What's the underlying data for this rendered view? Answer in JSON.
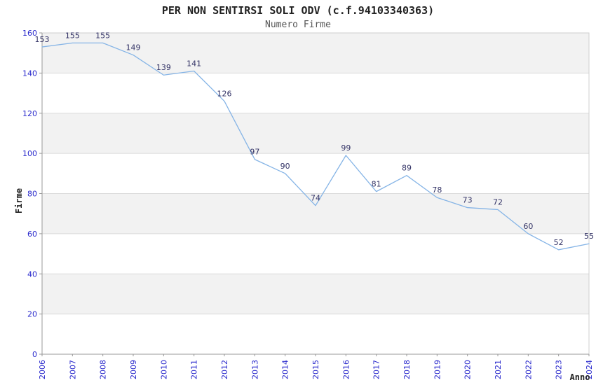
{
  "chart_data": {
    "type": "line",
    "title": "PER NON SENTIRSI SOLI ODV (c.f.94103340363)",
    "subtitle": "Numero Firme",
    "xlabel": "Anno",
    "ylabel": "Firme",
    "x": [
      "2006",
      "2007",
      "2008",
      "2009",
      "2010",
      "2011",
      "2012",
      "2013",
      "2014",
      "2015",
      "2016",
      "2017",
      "2018",
      "2019",
      "2020",
      "2021",
      "2022",
      "2023",
      "2024"
    ],
    "series": [
      {
        "name": "Numero Firme",
        "values": [
          153,
          155,
          155,
          149,
          139,
          141,
          126,
          97,
          90,
          74,
          99,
          81,
          89,
          78,
          73,
          72,
          60,
          52,
          55
        ]
      }
    ],
    "ylim": [
      0,
      160
    ],
    "yticks": [
      0,
      20,
      40,
      60,
      80,
      100,
      120,
      140,
      160
    ],
    "grid": true,
    "banded_rows": true,
    "legend_position": "none",
    "colors": {
      "line": "#85B4E6",
      "data_label": "#333366",
      "tick_label": "#2929CC",
      "title": "#222222",
      "subtitle": "#555555",
      "axis_title": "#222222",
      "band": "#F2F2F2",
      "grid": "#DADADA",
      "plot_border": "#CFCFCF",
      "axis_line": "#999999",
      "background": "#FFFFFF"
    }
  }
}
